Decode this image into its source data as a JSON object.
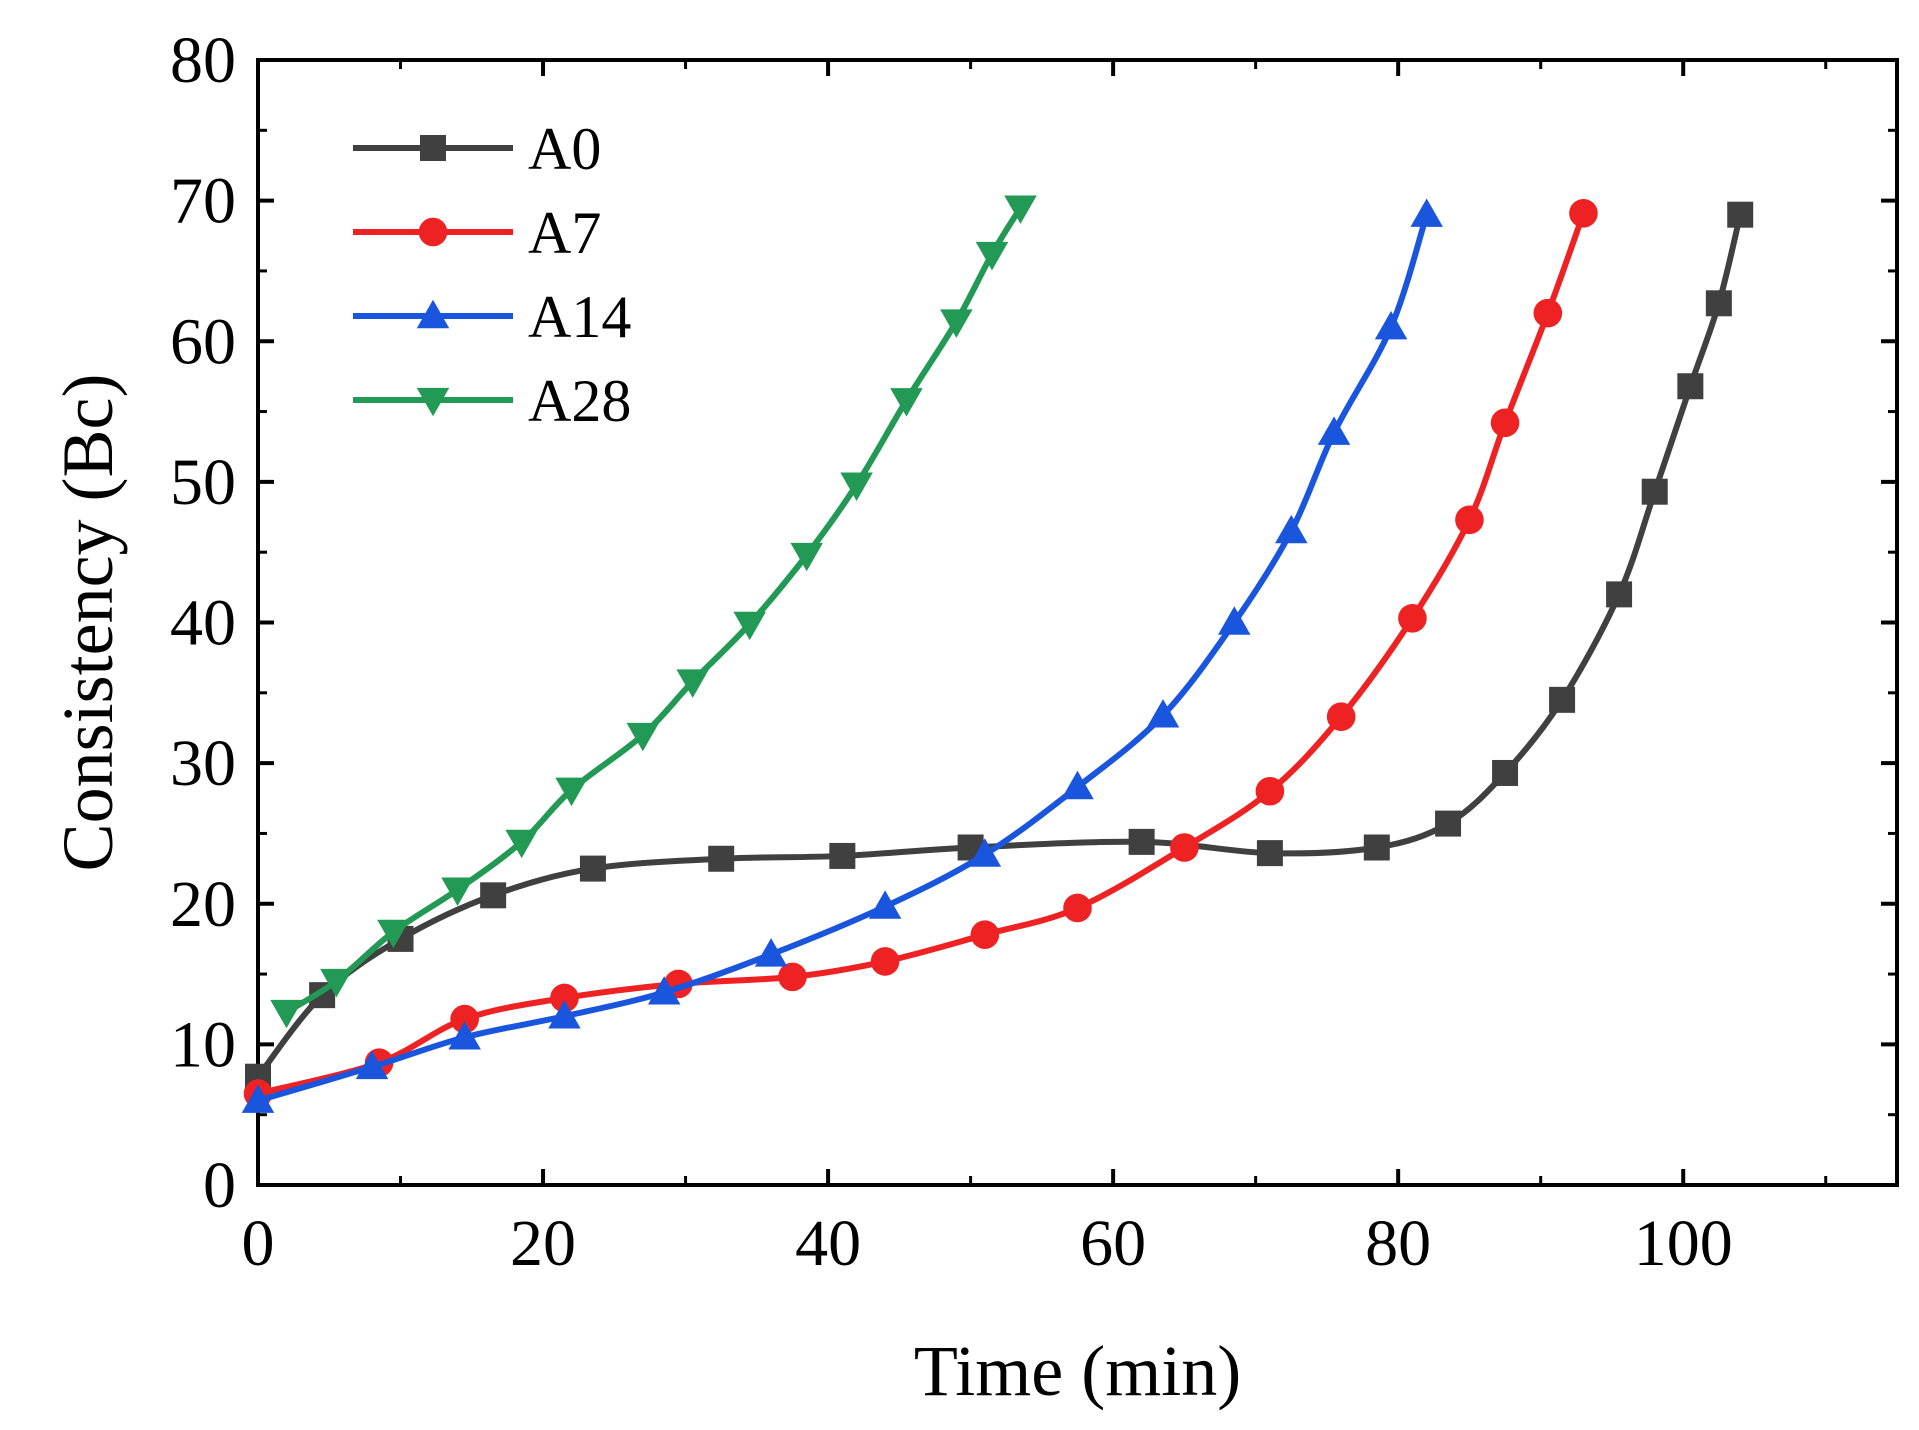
{
  "chart_data": {
    "type": "line",
    "title": "",
    "xlabel": "Time (min)",
    "ylabel": "Consistency (Bc)",
    "xlim": [
      0,
      115
    ],
    "ylim": [
      0,
      80
    ],
    "xticks": [
      0,
      20,
      40,
      60,
      80,
      100
    ],
    "yticks": [
      0,
      10,
      20,
      30,
      40,
      50,
      60,
      70,
      80
    ],
    "grid": false,
    "legend_position": "top-left",
    "series": [
      {
        "name": "A0",
        "color": "#404040",
        "marker": "square",
        "points": [
          [
            0,
            7.7
          ],
          [
            4.5,
            13.5
          ],
          [
            10,
            17.5
          ],
          [
            16.5,
            20.6
          ],
          [
            23.5,
            22.5
          ],
          [
            32.5,
            23.2
          ],
          [
            41,
            23.4
          ],
          [
            50,
            24
          ],
          [
            62,
            24.4
          ],
          [
            71,
            23.6
          ],
          [
            78.5,
            24
          ],
          [
            83.5,
            25.7
          ],
          [
            87.5,
            29.3
          ],
          [
            91.5,
            34.5
          ],
          [
            95.5,
            42
          ],
          [
            98,
            49.3
          ],
          [
            100.5,
            56.8
          ],
          [
            102.5,
            62.7
          ],
          [
            104,
            69
          ]
        ]
      },
      {
        "name": "A7",
        "color": "#ee2222",
        "marker": "circle",
        "points": [
          [
            0,
            6.5
          ],
          [
            8.5,
            8.7
          ],
          [
            14.5,
            11.8
          ],
          [
            21.5,
            13.3
          ],
          [
            29.5,
            14.3
          ],
          [
            37.5,
            14.8
          ],
          [
            44,
            15.9
          ],
          [
            51,
            17.8
          ],
          [
            57.5,
            19.7
          ],
          [
            65,
            24
          ],
          [
            71,
            28
          ],
          [
            76,
            33.3
          ],
          [
            81,
            40.3
          ],
          [
            85,
            47.3
          ],
          [
            87.5,
            54.2
          ],
          [
            90.5,
            62
          ],
          [
            93,
            69.1
          ]
        ]
      },
      {
        "name": "A14",
        "color": "#1a55dd",
        "marker": "triangle-up",
        "points": [
          [
            0,
            6
          ],
          [
            8,
            8.4
          ],
          [
            14.5,
            10.5
          ],
          [
            21.5,
            12
          ],
          [
            28.5,
            13.7
          ],
          [
            36,
            16.4
          ],
          [
            44,
            19.8
          ],
          [
            51,
            23.5
          ],
          [
            57.5,
            28.3
          ],
          [
            63.5,
            33.4
          ],
          [
            68.5,
            40
          ],
          [
            72.5,
            46.5
          ],
          [
            75.5,
            53.5
          ],
          [
            79.5,
            61
          ],
          [
            82,
            69
          ]
        ]
      },
      {
        "name": "A28",
        "color": "#229955",
        "marker": "triangle-down",
        "points": [
          [
            2,
            12.3
          ],
          [
            5.5,
            14.5
          ],
          [
            9.5,
            18
          ],
          [
            14,
            21
          ],
          [
            18.5,
            24.4
          ],
          [
            22,
            28.1
          ],
          [
            27,
            32
          ],
          [
            30.5,
            35.8
          ],
          [
            34.5,
            39.9
          ],
          [
            38.5,
            44.8
          ],
          [
            42,
            49.8
          ],
          [
            45.5,
            55.8
          ],
          [
            49,
            61.4
          ],
          [
            51.5,
            66.2
          ],
          [
            53.5,
            69.5
          ]
        ]
      }
    ]
  }
}
